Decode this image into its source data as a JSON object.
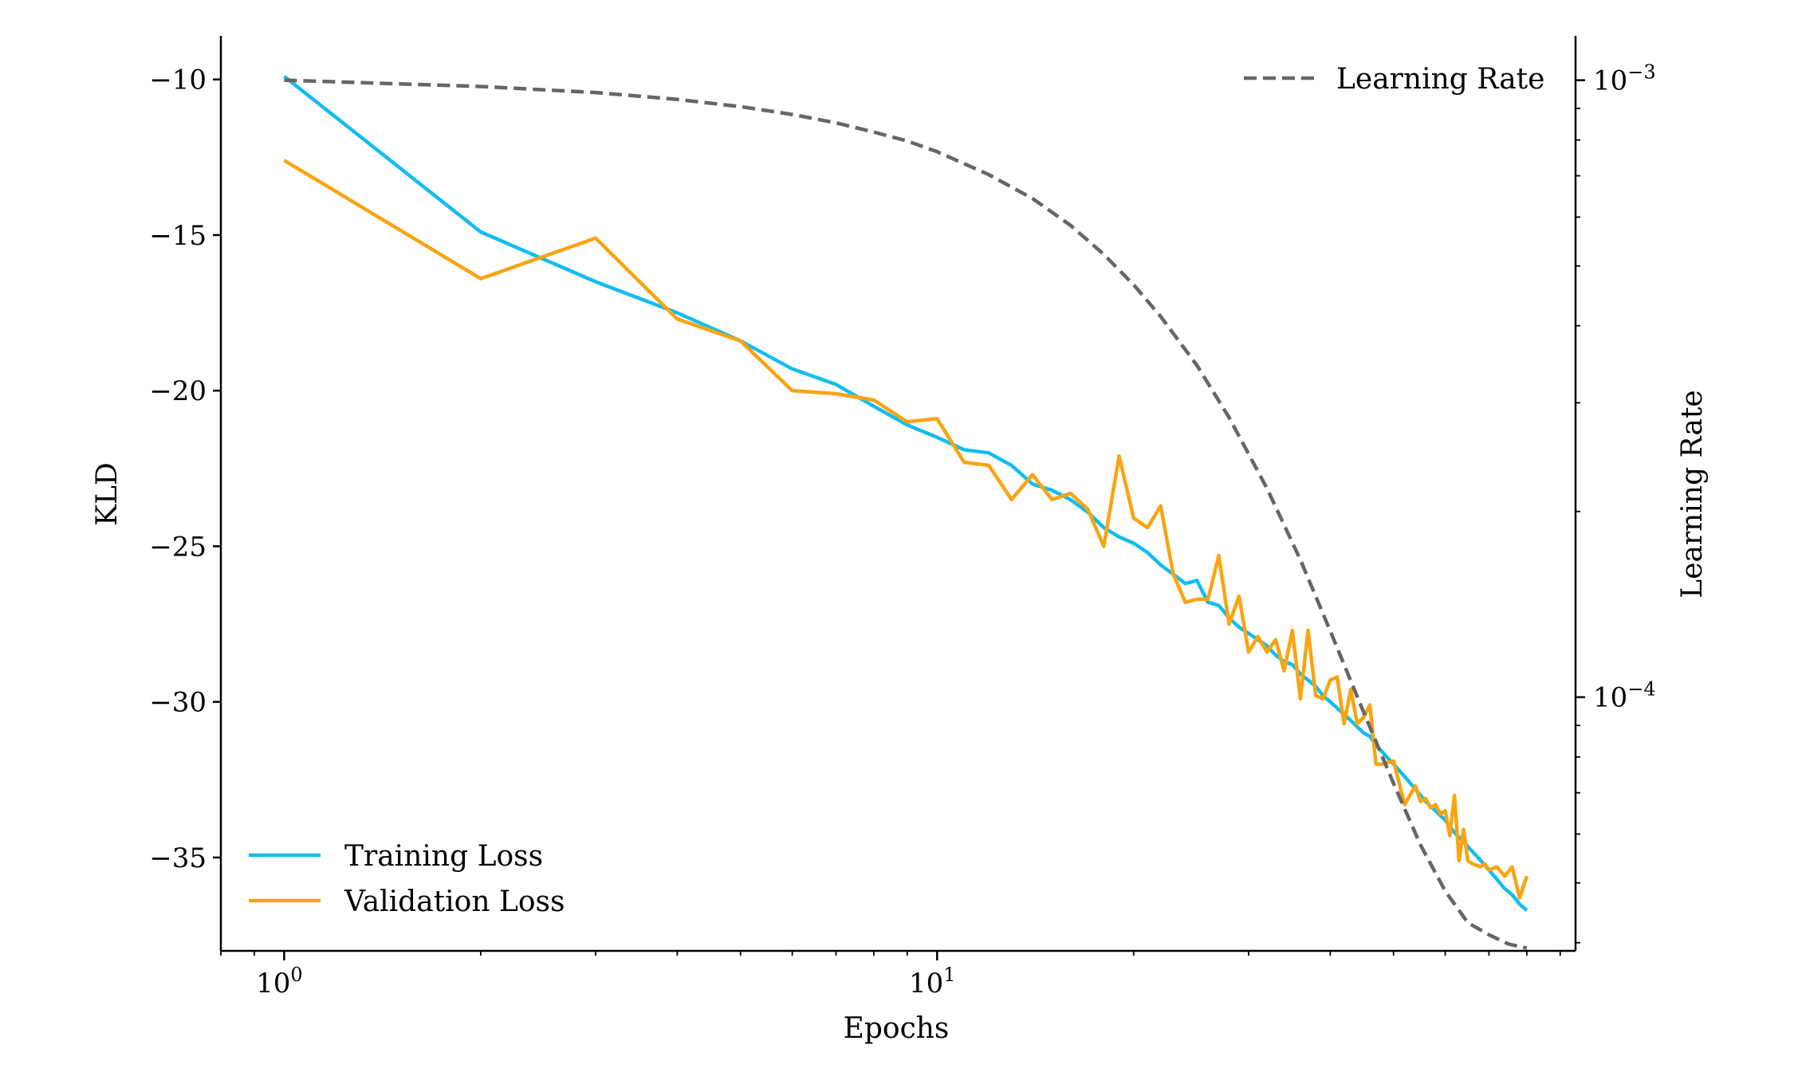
{
  "chart_data": {
    "type": "line",
    "xlabel": "Epochs",
    "ylabel": "KLD",
    "y2label": "Learning Rate",
    "x_scale": "log",
    "y2_scale": "log",
    "xlim": [
      0.8,
      95
    ],
    "ylim": [
      -38.0,
      -8.6
    ],
    "y2lim": [
      3.88e-05,
      0.00118
    ],
    "x_ticks": [
      {
        "value": 1,
        "label": "10",
        "exp": "0"
      },
      {
        "value": 10,
        "label": "10",
        "exp": "1"
      }
    ],
    "y_ticks": [
      {
        "value": -10,
        "label": "−10"
      },
      {
        "value": -15,
        "label": "−15"
      },
      {
        "value": -20,
        "label": "−20"
      },
      {
        "value": -25,
        "label": "−25"
      },
      {
        "value": -30,
        "label": "−30"
      },
      {
        "value": -35,
        "label": "−35"
      }
    ],
    "y2_ticks": [
      {
        "value": 0.001,
        "label": "10",
        "exp": "−3"
      },
      {
        "value": 0.0001,
        "label": "10",
        "exp": "−4"
      }
    ],
    "legends": {
      "left_bottom": [
        "Training Loss",
        "Validation Loss"
      ],
      "right_top": [
        "Learning Rate"
      ],
      "placement_left": "lower-left",
      "placement_right": "upper-right"
    },
    "grid": false,
    "series": [
      {
        "name": "Training Loss",
        "axis": "left",
        "color": "#13bdf0",
        "points": [
          [
            1,
            -9.9
          ],
          [
            2,
            -14.9
          ],
          [
            3,
            -16.5
          ],
          [
            4,
            -17.5
          ],
          [
            5,
            -18.4
          ],
          [
            6,
            -19.3
          ],
          [
            7,
            -19.8
          ],
          [
            8,
            -20.5
          ],
          [
            9,
            -21.1
          ],
          [
            10,
            -21.5
          ],
          [
            11,
            -21.9
          ],
          [
            12,
            -22.0
          ],
          [
            13,
            -22.4
          ],
          [
            14,
            -23.0
          ],
          [
            15,
            -23.2
          ],
          [
            16,
            -23.5
          ],
          [
            17,
            -23.9
          ],
          [
            18,
            -24.4
          ],
          [
            19,
            -24.7
          ],
          [
            20,
            -24.9
          ],
          [
            21,
            -25.2
          ],
          [
            22,
            -25.6
          ],
          [
            23,
            -25.9
          ],
          [
            24,
            -26.2
          ],
          [
            25,
            -26.1
          ],
          [
            26,
            -26.8
          ],
          [
            27,
            -26.9
          ],
          [
            28,
            -27.3
          ],
          [
            29,
            -27.6
          ],
          [
            30,
            -27.8
          ],
          [
            31,
            -28.0
          ],
          [
            32,
            -28.2
          ],
          [
            33,
            -28.5
          ],
          [
            34,
            -28.7
          ],
          [
            35,
            -28.8
          ],
          [
            36,
            -29.1
          ],
          [
            37,
            -29.3
          ],
          [
            38,
            -29.5
          ],
          [
            39,
            -29.8
          ],
          [
            40,
            -30.0
          ],
          [
            41,
            -30.2
          ],
          [
            42,
            -30.4
          ],
          [
            43,
            -30.6
          ],
          [
            44,
            -30.8
          ],
          [
            45,
            -31.0
          ],
          [
            46,
            -31.1
          ],
          [
            47,
            -31.4
          ],
          [
            48,
            -31.6
          ],
          [
            49,
            -31.8
          ],
          [
            50,
            -32.0
          ],
          [
            52,
            -32.4
          ],
          [
            54,
            -32.8
          ],
          [
            56,
            -33.2
          ],
          [
            58,
            -33.5
          ],
          [
            60,
            -33.8
          ],
          [
            62,
            -34.2
          ],
          [
            64,
            -34.5
          ],
          [
            66,
            -34.8
          ],
          [
            68,
            -35.1
          ],
          [
            70,
            -35.4
          ],
          [
            72,
            -35.7
          ],
          [
            74,
            -36.0
          ],
          [
            76,
            -36.2
          ],
          [
            78,
            -36.5
          ],
          [
            80,
            -36.7
          ]
        ]
      },
      {
        "name": "Validation Loss",
        "axis": "left",
        "color": "#f9a411",
        "points": [
          [
            1,
            -12.6
          ],
          [
            2,
            -16.4
          ],
          [
            3,
            -15.1
          ],
          [
            4,
            -17.7
          ],
          [
            5,
            -18.4
          ],
          [
            6,
            -20.0
          ],
          [
            7,
            -20.1
          ],
          [
            8,
            -20.3
          ],
          [
            9,
            -21.0
          ],
          [
            10,
            -20.9
          ],
          [
            11,
            -22.3
          ],
          [
            12,
            -22.4
          ],
          [
            13,
            -23.5
          ],
          [
            14,
            -22.7
          ],
          [
            15,
            -23.5
          ],
          [
            16,
            -23.3
          ],
          [
            17,
            -23.8
          ],
          [
            18,
            -25.0
          ],
          [
            19,
            -22.1
          ],
          [
            20,
            -24.1
          ],
          [
            21,
            -24.4
          ],
          [
            22,
            -23.7
          ],
          [
            23,
            -25.9
          ],
          [
            24,
            -26.8
          ],
          [
            25,
            -26.7
          ],
          [
            26,
            -26.7
          ],
          [
            27,
            -25.3
          ],
          [
            28,
            -27.5
          ],
          [
            29,
            -26.6
          ],
          [
            30,
            -28.4
          ],
          [
            31,
            -27.9
          ],
          [
            32,
            -28.4
          ],
          [
            33,
            -28.0
          ],
          [
            34,
            -29.0
          ],
          [
            35,
            -27.7
          ],
          [
            36,
            -29.9
          ],
          [
            37,
            -27.7
          ],
          [
            38,
            -29.8
          ],
          [
            39,
            -29.9
          ],
          [
            40,
            -29.3
          ],
          [
            41,
            -29.2
          ],
          [
            42,
            -30.7
          ],
          [
            43,
            -29.6
          ],
          [
            44,
            -30.7
          ],
          [
            45,
            -30.5
          ],
          [
            46,
            -30.1
          ],
          [
            47,
            -32.0
          ],
          [
            48,
            -32.0
          ],
          [
            50,
            -31.9
          ],
          [
            52,
            -33.3
          ],
          [
            54,
            -32.7
          ],
          [
            55,
            -33.2
          ],
          [
            56,
            -33.1
          ],
          [
            57,
            -33.4
          ],
          [
            58,
            -33.3
          ],
          [
            59,
            -33.6
          ],
          [
            60,
            -33.5
          ],
          [
            61,
            -34.3
          ],
          [
            62,
            -33.0
          ],
          [
            63,
            -35.1
          ],
          [
            64,
            -34.1
          ],
          [
            65,
            -35.1
          ],
          [
            66,
            -35.2
          ],
          [
            68,
            -35.3
          ],
          [
            69,
            -35.2
          ],
          [
            70,
            -35.4
          ],
          [
            72,
            -35.3
          ],
          [
            74,
            -35.6
          ],
          [
            76,
            -35.3
          ],
          [
            78,
            -36.3
          ],
          [
            80,
            -35.6
          ]
        ]
      },
      {
        "name": "Learning Rate",
        "axis": "right",
        "color": "#666666",
        "dashed": true,
        "points": [
          [
            1,
            0.001
          ],
          [
            2,
            0.000977
          ],
          [
            3,
            0.000955
          ],
          [
            4,
            0.000931
          ],
          [
            5,
            0.000906
          ],
          [
            6,
            0.00088
          ],
          [
            7,
            0.000853
          ],
          [
            8,
            0.000824
          ],
          [
            9,
            0.000797
          ],
          [
            10,
            0.000766
          ],
          [
            12,
            0.000703
          ],
          [
            14,
            0.000643
          ],
          [
            16,
            0.000582
          ],
          [
            18,
            0.000522
          ],
          [
            20,
            0.000466
          ],
          [
            22,
            0.000414
          ],
          [
            25,
            0.000345
          ],
          [
            28,
            0.000284
          ],
          [
            32,
            0.000218
          ],
          [
            36,
            0.000167
          ],
          [
            40,
            0.000128
          ],
          [
            45,
            9.46e-05
          ],
          [
            50,
            7.25e-05
          ],
          [
            55,
            5.76e-05
          ],
          [
            60,
            4.85e-05
          ],
          [
            65,
            4.31e-05
          ],
          [
            70,
            4.12e-05
          ],
          [
            75,
            3.98e-05
          ],
          [
            80,
            3.92e-05
          ]
        ]
      }
    ]
  }
}
